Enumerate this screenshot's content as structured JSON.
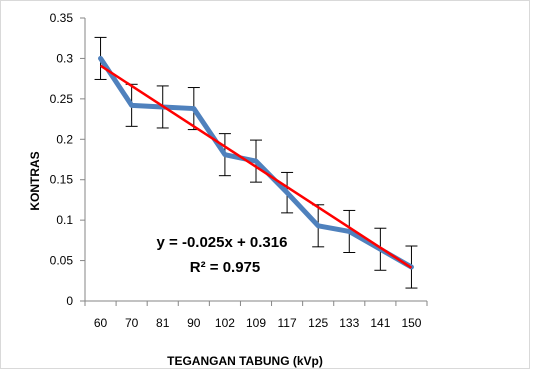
{
  "chart_data": {
    "type": "line",
    "categories": [
      "60",
      "70",
      "81",
      "90",
      "102",
      "109",
      "117",
      "125",
      "133",
      "141",
      "150"
    ],
    "series": [
      {
        "values": [
          0.3,
          0.242,
          0.24,
          0.238,
          0.181,
          0.173,
          0.134,
          0.093,
          0.086,
          0.064,
          0.042
        ],
        "error": [
          0.026,
          0.026,
          0.026,
          0.026,
          0.026,
          0.026,
          0.025,
          0.026,
          0.026,
          0.026,
          0.026
        ],
        "color": "#4f81bd"
      }
    ],
    "trendline": {
      "slope": -0.025,
      "intercept": 0.316,
      "color": "#ff0000",
      "equation_label": "y = -0.025x + 0.316",
      "r2_label": "R² = 0.975"
    },
    "xlabel": "TEGANGAN TABUNG  (kVp)",
    "ylabel": "KONTRAS",
    "ylim": [
      0,
      0.35
    ],
    "yticks": [
      "0",
      "0.05",
      "0.1",
      "0.15",
      "0.2",
      "0.25",
      "0.3",
      "0.35"
    ],
    "grid": false,
    "legend": "none"
  }
}
